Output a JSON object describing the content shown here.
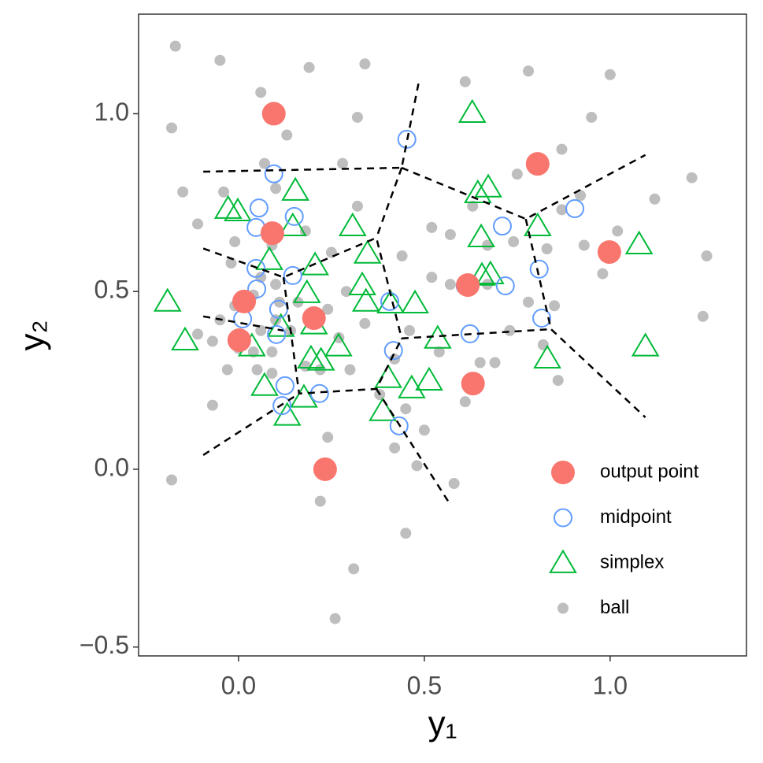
{
  "chart_data": {
    "type": "scatter",
    "xlabel": "y₁",
    "ylabel": "y₂",
    "xlim": [
      -0.269,
      1.367
    ],
    "ylim": [
      -0.525,
      1.28
    ],
    "xticks": [
      {
        "value": 0,
        "label": "0.0"
      },
      {
        "value": 0.5,
        "label": "0.5"
      },
      {
        "value": 1,
        "label": "1.0"
      }
    ],
    "yticks": [
      {
        "value": -0.5,
        "label": "−0.5"
      },
      {
        "value": 0,
        "label": "0.0"
      },
      {
        "value": 0.5,
        "label": "0.5"
      },
      {
        "value": 1,
        "label": "1.0"
      }
    ],
    "legend": "bottom-right",
    "lines_color": "#000000",
    "lines_dashed": true,
    "lines": [
      {
        "x": [
          -0.095,
          0.439,
          0.487
        ],
        "y": [
          0.837,
          0.848,
          1.099
        ]
      },
      {
        "x": [
          0.439,
          0.371
        ],
        "y": [
          0.848,
          0.651
        ]
      },
      {
        "x": [
          0.439,
          0.773,
          1.095
        ],
        "y": [
          0.848,
          0.704,
          0.884
        ]
      },
      {
        "x": [
          0.773,
          0.841,
          1.095
        ],
        "y": [
          0.704,
          0.394,
          0.146
        ]
      },
      {
        "x": [
          -0.095,
          0.121,
          0.371,
          0.439,
          0.841
        ],
        "y": [
          0.621,
          0.54,
          0.651,
          0.368,
          0.394
        ]
      },
      {
        "x": [
          -0.095,
          0.121
        ],
        "y": [
          0.43,
          0.39
        ]
      },
      {
        "x": [
          0.121,
          0.163,
          0.371,
          0.439
        ],
        "y": [
          0.54,
          0.213,
          0.226,
          0.368
        ]
      },
      {
        "x": [
          -0.095,
          0.163
        ],
        "y": [
          0.04,
          0.213
        ]
      },
      {
        "x": [
          0.371,
          0.566
        ],
        "y": [
          0.226,
          -0.093
        ]
      }
    ],
    "series": [
      {
        "name": "output point",
        "color": "#F8766D",
        "marker": "big-dot",
        "x": [
          0.095,
          0.805,
          0.091,
          0.998,
          0.617,
          0.015,
          0.203,
          0.002,
          0.631,
          0.233
        ],
        "values": [
          1.0,
          0.859,
          0.664,
          0.611,
          0.518,
          0.472,
          0.425,
          0.363,
          0.241,
          0.0
        ]
      },
      {
        "name": "midpoint",
        "color": "#619CFF",
        "marker": "circle",
        "x": [
          0.453,
          0.095,
          0.055,
          0.15,
          0.047,
          0.047,
          0.146,
          0.049,
          0.108,
          0.011,
          0.102,
          0.407,
          0.417,
          0.61,
          0.718,
          0.71,
          0.905,
          0.809,
          0.816,
          0.623,
          0.125,
          0.117,
          0.218,
          0.432
        ],
        "values": [
          0.928,
          0.831,
          0.735,
          0.711,
          0.68,
          0.565,
          0.545,
          0.507,
          0.45,
          0.423,
          0.379,
          0.472,
          0.334,
          0.516,
          0.516,
          0.684,
          0.733,
          0.563,
          0.425,
          0.381,
          0.235,
          0.179,
          0.213,
          0.122
        ]
      },
      {
        "name": "simplex",
        "color": "#00BA38",
        "marker": "triangle",
        "x": [
          0.629,
          0.153,
          -0.028,
          -0.002,
          0.146,
          0.307,
          0.347,
          0.083,
          0.206,
          0.333,
          0.184,
          0.343,
          0.409,
          0.475,
          -0.191,
          -0.144,
          0.036,
          0.203,
          0.114,
          0.195,
          0.222,
          0.269,
          0.07,
          0.131,
          0.403,
          0.536,
          0.466,
          0.513,
          0.388,
          0.176,
          0.653,
          0.644,
          0.672,
          0.805,
          0.678,
          0.655,
          0.831,
          1.095,
          1.078
        ],
        "values": [
          1.003,
          0.784,
          0.733,
          0.726,
          0.684,
          0.684,
          0.607,
          0.589,
          0.574,
          0.518,
          0.496,
          0.472,
          0.467,
          0.467,
          0.472,
          0.363,
          0.346,
          0.408,
          0.401,
          0.312,
          0.306,
          0.346,
          0.235,
          0.151,
          0.257,
          0.368,
          0.228,
          0.25,
          0.164,
          0.202,
          0.653,
          0.777,
          0.793,
          0.684,
          0.549,
          0.545,
          0.312,
          0.346,
          0.633
        ]
      },
      {
        "name": "ball",
        "color": "#BEBEBE",
        "marker": "dot",
        "x": [
          -0.17,
          -0.05,
          0.19,
          0.34,
          0.06,
          0.61,
          0.78,
          1.0,
          -0.18,
          0.32,
          0.13,
          0.95,
          0.87,
          0.75,
          0.28,
          0.07,
          -0.15,
          -0.04,
          0.1,
          0.32,
          0.63,
          0.87,
          0.92,
          1.22,
          1.12,
          1.26,
          -0.11,
          -0.01,
          0.09,
          0.18,
          0.25,
          0.52,
          0.57,
          0.67,
          0.74,
          0.83,
          0.93,
          1.02,
          0.98,
          -0.02,
          0.06,
          0.1,
          0.04,
          0.11,
          0.16,
          0.24,
          0.29,
          0.44,
          0.52,
          0.57,
          0.67,
          0.78,
          0.85,
          0.73,
          0.82,
          1.25,
          -0.01,
          -0.05,
          -0.11,
          -0.07,
          0.0,
          0.04,
          0.09,
          0.14,
          0.19,
          0.27,
          0.3,
          0.22,
          -0.03,
          0.05,
          0.09,
          -0.07,
          0.18,
          0.42,
          0.54,
          0.46,
          0.34,
          0.65,
          0.69,
          0.86,
          0.61,
          0.38,
          0.45,
          0.24,
          0.42,
          0.5,
          0.48,
          -0.18,
          0.58,
          0.22,
          0.45,
          0.31,
          0.26,
          0.1,
          0.06
        ],
        "values": [
          1.19,
          1.15,
          1.13,
          1.14,
          1.06,
          1.09,
          1.12,
          1.11,
          0.96,
          0.99,
          0.94,
          0.99,
          0.9,
          0.83,
          0.86,
          0.86,
          0.78,
          0.78,
          0.79,
          0.74,
          0.74,
          0.73,
          0.77,
          0.82,
          0.76,
          0.6,
          0.69,
          0.64,
          0.63,
          0.67,
          0.61,
          0.68,
          0.66,
          0.63,
          0.64,
          0.62,
          0.63,
          0.67,
          0.55,
          0.58,
          0.54,
          0.52,
          0.49,
          0.47,
          0.47,
          0.45,
          0.5,
          0.6,
          0.54,
          0.52,
          0.52,
          0.47,
          0.46,
          0.39,
          0.35,
          0.43,
          0.46,
          0.42,
          0.38,
          0.36,
          0.34,
          0.33,
          0.33,
          0.39,
          0.42,
          0.37,
          0.28,
          0.28,
          0.28,
          0.28,
          0.27,
          0.18,
          0.29,
          0.31,
          0.33,
          0.39,
          0.41,
          0.3,
          0.3,
          0.25,
          0.19,
          0.21,
          0.17,
          0.09,
          0.06,
          0.11,
          0.01,
          -0.03,
          -0.04,
          -0.09,
          -0.18,
          -0.28,
          -0.42,
          0.42,
          0.39
        ]
      }
    ]
  }
}
